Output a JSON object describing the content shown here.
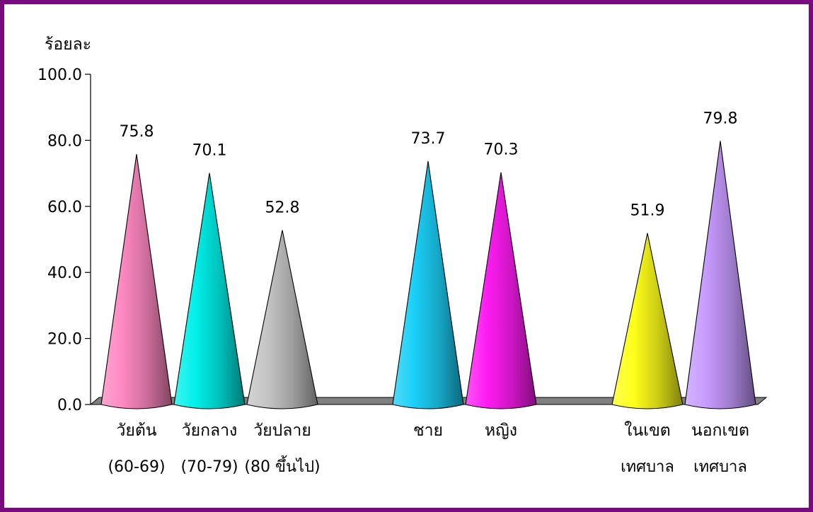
{
  "chart_data": {
    "type": "bar",
    "ylabel": "ร้อยละ",
    "ylim": [
      0,
      100
    ],
    "yticks": [
      "0.0",
      "20.0",
      "40.0",
      "60.0",
      "80.0",
      "100.0"
    ],
    "categories": [
      {
        "line1": "วัยต้น",
        "line2": "(60-69)",
        "value": 75.8,
        "value_label": "75.8",
        "color": "#ff88c2"
      },
      {
        "line1": "วัยกลาง",
        "line2": "(70-79)",
        "value": 70.1,
        "value_label": "70.1",
        "color": "#00f0ea"
      },
      {
        "line1": "วัยปลาย",
        "line2": "(80 ขึ้นไป)",
        "value": 52.8,
        "value_label": "52.8",
        "color": "#c4c4c4"
      },
      {
        "line1": "ชาย",
        "line2": "",
        "value": 73.7,
        "value_label": "73.7",
        "color": "#1ad0f7"
      },
      {
        "line1": "หญิง",
        "line2": "",
        "value": 70.3,
        "value_label": "70.3",
        "color": "#ff1cf4"
      },
      {
        "line1": "ในเขต",
        "line2": "เทศบาล",
        "value": 51.9,
        "value_label": "51.9",
        "color": "#ffff1a"
      },
      {
        "line1": "นอกเขต",
        "line2": "เทศบาล",
        "value": 79.8,
        "value_label": "79.8",
        "color": "#c79bff"
      }
    ],
    "colors": {
      "frame": "#7a0b7e",
      "floor": "#808080"
    }
  }
}
